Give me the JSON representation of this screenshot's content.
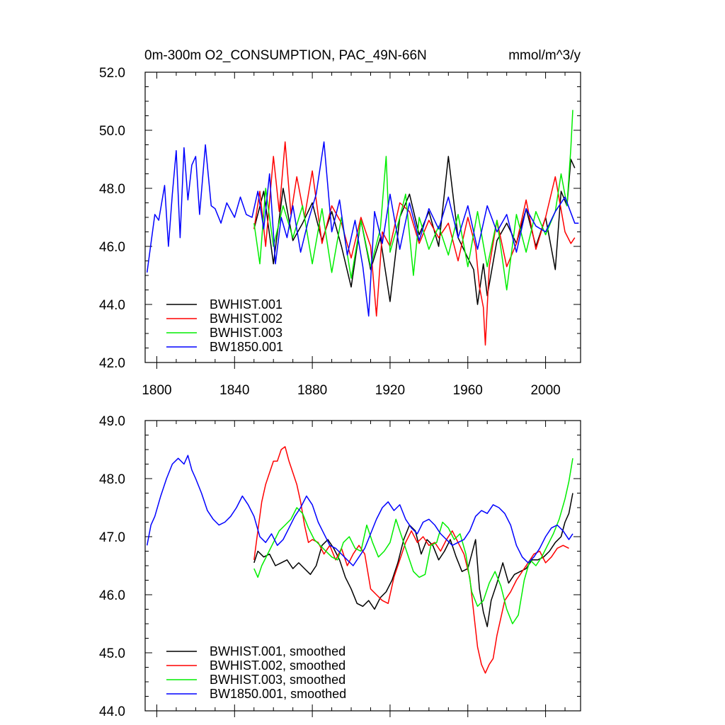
{
  "figure": {
    "title_left": "0m-300m O2_CONSUMPTION, PAC_49N-66N",
    "title_right": "mmol/m^3/y"
  },
  "chart_data": [
    {
      "type": "line",
      "title": "0m-300m O2_CONSUMPTION, PAC_49N-66N",
      "units": "mmol/m^3/y",
      "xlabel": "",
      "ylabel": "",
      "xlim": [
        1794,
        2018
      ],
      "ylim": [
        42.0,
        52.0
      ],
      "xticks": [
        1800,
        1840,
        1880,
        1920,
        1960,
        2000
      ],
      "yticks": [
        "42.0",
        "44.0",
        "46.0",
        "48.0",
        "50.0",
        "52.0"
      ],
      "legend_position": "bottom-left",
      "series": [
        {
          "name": "BWHIST.001",
          "color": "#000000",
          "x": [
            1850,
            1855,
            1860,
            1865,
            1870,
            1875,
            1880,
            1885,
            1890,
            1895,
            1900,
            1905,
            1910,
            1915,
            1920,
            1925,
            1930,
            1935,
            1940,
            1945,
            1950,
            1955,
            1960,
            1963,
            1965,
            1968,
            1970,
            1975,
            1980,
            1985,
            1990,
            1995,
            2000,
            2005,
            2008,
            2011,
            2013,
            2015
          ],
          "values": [
            46.6,
            47.9,
            45.4,
            48.0,
            46.2,
            46.8,
            47.5,
            46.2,
            47.2,
            46.0,
            44.6,
            46.9,
            45.2,
            46.3,
            44.1,
            47.0,
            47.8,
            46.4,
            47.2,
            46.0,
            49.1,
            46.3,
            45.6,
            45.2,
            44.0,
            45.4,
            44.3,
            46.2,
            46.8,
            46.1,
            47.3,
            46.0,
            47.0,
            45.2,
            47.9,
            47.4,
            49.0,
            48.7
          ]
        },
        {
          "name": "BWHIST.002",
          "color": "#ff0000",
          "x": [
            1850,
            1853,
            1856,
            1860,
            1863,
            1866,
            1869,
            1872,
            1876,
            1880,
            1885,
            1890,
            1895,
            1900,
            1905,
            1910,
            1913,
            1916,
            1920,
            1925,
            1930,
            1935,
            1940,
            1945,
            1950,
            1955,
            1960,
            1964,
            1966,
            1968,
            1969,
            1971,
            1975,
            1980,
            1985,
            1990,
            1995,
            2000,
            2005,
            2010,
            2013,
            2015
          ],
          "values": [
            46.6,
            47.9,
            46.0,
            49.1,
            47.2,
            49.6,
            47.1,
            48.4,
            47.0,
            48.6,
            46.1,
            47.4,
            46.8,
            45.6,
            47.0,
            46.0,
            43.6,
            46.5,
            46.0,
            47.5,
            47.2,
            46.1,
            46.9,
            46.3,
            46.8,
            45.5,
            47.0,
            46.0,
            44.6,
            43.9,
            42.6,
            45.3,
            46.9,
            45.3,
            46.1,
            47.6,
            45.9,
            47.0,
            48.4,
            46.5,
            46.1,
            46.3
          ]
        },
        {
          "name": "BWHIST.003",
          "color": "#00ee00",
          "x": [
            1850,
            1853,
            1856,
            1860,
            1865,
            1870,
            1875,
            1880,
            1885,
            1890,
            1895,
            1900,
            1905,
            1910,
            1915,
            1918,
            1920,
            1925,
            1928,
            1932,
            1935,
            1940,
            1945,
            1950,
            1955,
            1960,
            1965,
            1970,
            1975,
            1980,
            1985,
            1990,
            1995,
            2000,
            2005,
            2008,
            2011,
            2013,
            2014
          ],
          "values": [
            46.8,
            45.4,
            48.0,
            46.0,
            47.4,
            46.3,
            47.4,
            45.4,
            47.3,
            45.1,
            47.0,
            44.9,
            46.9,
            45.3,
            46.6,
            49.1,
            45.8,
            47.0,
            47.8,
            45.0,
            47.0,
            45.9,
            46.7,
            45.7,
            47.1,
            45.3,
            47.2,
            45.3,
            46.9,
            44.5,
            47.1,
            45.8,
            47.2,
            46.4,
            47.2,
            48.5,
            47.4,
            49.4,
            50.7
          ]
        },
        {
          "name": "BW1850.001",
          "color": "#0000ff",
          "x": [
            1795,
            1797,
            1799,
            1801,
            1804,
            1806,
            1808,
            1810,
            1812,
            1814,
            1816,
            1818,
            1820,
            1822,
            1825,
            1828,
            1830,
            1833,
            1836,
            1840,
            1843,
            1846,
            1849,
            1852,
            1855,
            1858,
            1861,
            1864,
            1867,
            1870,
            1874,
            1878,
            1882,
            1886,
            1890,
            1894,
            1898,
            1902,
            1906,
            1909,
            1912,
            1916,
            1920,
            1925,
            1930,
            1935,
            1940,
            1945,
            1950,
            1955,
            1960,
            1965,
            1970,
            1975,
            1980,
            1985,
            1990,
            1995,
            2000,
            2005,
            2010,
            2015,
            2017
          ],
          "values": [
            45.1,
            46.1,
            47.1,
            46.9,
            48.1,
            46.0,
            47.8,
            49.3,
            46.3,
            49.4,
            47.6,
            48.8,
            49.1,
            47.1,
            49.5,
            47.4,
            47.3,
            46.8,
            47.5,
            47.0,
            47.7,
            47.1,
            47.0,
            47.9,
            46.6,
            48.5,
            45.4,
            47.0,
            46.3,
            47.4,
            45.8,
            46.9,
            47.8,
            49.6,
            46.5,
            47.6,
            45.7,
            46.9,
            45.3,
            43.6,
            47.2,
            46.1,
            47.8,
            45.9,
            47.5,
            46.2,
            47.3,
            46.6,
            47.7,
            46.3,
            47.4,
            45.9,
            47.4,
            46.5,
            47.1,
            45.8,
            47.3,
            46.7,
            46.5,
            47.2,
            47.7,
            46.8,
            46.8
          ]
        }
      ]
    },
    {
      "type": "line",
      "title": "",
      "xlabel": "",
      "ylabel": "",
      "xlim": [
        1794,
        2018
      ],
      "ylim": [
        44.0,
        49.0
      ],
      "xticks": [
        1800,
        1840,
        1880,
        1920,
        1960,
        2000
      ],
      "yticks": [
        "44.0",
        "45.0",
        "46.0",
        "47.0",
        "48.0",
        "49.0"
      ],
      "legend_position": "bottom-left",
      "series": [
        {
          "name": "BWHIST.001, smoothed",
          "color": "#000000",
          "x": [
            1850,
            1852,
            1855,
            1858,
            1861,
            1864,
            1867,
            1870,
            1873,
            1876,
            1879,
            1882,
            1885,
            1888,
            1891,
            1894,
            1897,
            1900,
            1903,
            1906,
            1909,
            1912,
            1915,
            1918,
            1921,
            1924,
            1927,
            1930,
            1933,
            1936,
            1939,
            1942,
            1945,
            1948,
            1951,
            1954,
            1957,
            1960,
            1962,
            1964,
            1966,
            1968,
            1970,
            1972,
            1975,
            1978,
            1981,
            1984,
            1987,
            1990,
            1993,
            1996,
            1999,
            2002,
            2005,
            2008,
            2010,
            2012,
            2014
          ],
          "values": [
            46.55,
            46.75,
            46.65,
            46.7,
            46.5,
            46.55,
            46.6,
            46.45,
            46.55,
            46.45,
            46.35,
            46.5,
            46.85,
            46.95,
            46.8,
            46.6,
            46.3,
            46.1,
            45.85,
            45.8,
            45.9,
            45.75,
            45.95,
            46.05,
            46.25,
            46.55,
            46.95,
            47.2,
            47.1,
            46.7,
            46.95,
            46.85,
            46.6,
            46.75,
            46.95,
            46.65,
            46.4,
            46.45,
            46.7,
            46.95,
            46.1,
            45.7,
            45.45,
            45.9,
            46.2,
            46.55,
            46.2,
            46.35,
            46.4,
            46.45,
            46.6,
            46.6,
            46.65,
            46.75,
            46.9,
            47.0,
            47.25,
            47.4,
            47.75
          ]
        },
        {
          "name": "BWHIST.002, smoothed",
          "color": "#ff0000",
          "x": [
            1850,
            1852,
            1854,
            1856,
            1858,
            1860,
            1862,
            1864,
            1866,
            1868,
            1870,
            1872,
            1874,
            1876,
            1878,
            1880,
            1883,
            1886,
            1889,
            1892,
            1895,
            1898,
            1901,
            1904,
            1907,
            1910,
            1913,
            1916,
            1919,
            1922,
            1925,
            1928,
            1931,
            1934,
            1937,
            1940,
            1943,
            1946,
            1949,
            1952,
            1955,
            1958,
            1961,
            1963,
            1965,
            1967,
            1969,
            1971,
            1973,
            1975,
            1977,
            1979,
            1982,
            1985,
            1988,
            1991,
            1994,
            1997,
            2000,
            2003,
            2006,
            2009,
            2012
          ],
          "values": [
            46.6,
            47.1,
            47.6,
            47.9,
            48.1,
            48.3,
            48.3,
            48.5,
            48.55,
            48.3,
            48.1,
            47.9,
            47.6,
            47.2,
            46.9,
            46.95,
            46.9,
            46.7,
            46.85,
            46.6,
            46.8,
            46.5,
            46.7,
            46.85,
            46.7,
            46.1,
            46.0,
            45.9,
            45.85,
            46.3,
            46.6,
            46.9,
            47.1,
            46.9,
            47.0,
            46.85,
            46.9,
            46.75,
            46.95,
            47.1,
            46.9,
            46.7,
            46.3,
            45.7,
            45.1,
            44.8,
            44.65,
            44.8,
            44.9,
            45.3,
            45.6,
            45.9,
            46.05,
            46.25,
            46.4,
            46.55,
            46.7,
            46.75,
            46.55,
            46.65,
            46.8,
            46.85,
            46.8
          ]
        },
        {
          "name": "BWHIST.003, smoothed",
          "color": "#00ee00",
          "x": [
            1850,
            1852,
            1854,
            1857,
            1860,
            1863,
            1866,
            1869,
            1872,
            1875,
            1878,
            1881,
            1884,
            1887,
            1890,
            1893,
            1896,
            1899,
            1902,
            1905,
            1908,
            1911,
            1914,
            1917,
            1920,
            1923,
            1926,
            1929,
            1932,
            1935,
            1938,
            1941,
            1944,
            1947,
            1950,
            1953,
            1956,
            1959,
            1962,
            1965,
            1968,
            1971,
            1974,
            1977,
            1980,
            1983,
            1986,
            1989,
            1992,
            1995,
            1998,
            2001,
            2004,
            2007,
            2010,
            2012,
            2014
          ],
          "values": [
            46.45,
            46.3,
            46.5,
            46.7,
            46.9,
            47.1,
            47.2,
            47.3,
            47.5,
            47.4,
            47.15,
            46.95,
            46.85,
            46.75,
            46.65,
            46.6,
            46.9,
            47.0,
            46.8,
            46.75,
            47.2,
            46.9,
            46.65,
            46.75,
            46.9,
            47.3,
            47.0,
            46.7,
            46.4,
            46.3,
            46.35,
            46.85,
            46.9,
            47.25,
            47.15,
            46.95,
            47.05,
            46.7,
            46.05,
            45.8,
            45.9,
            46.2,
            46.4,
            46.15,
            45.75,
            45.5,
            45.65,
            46.25,
            46.6,
            46.5,
            46.65,
            46.85,
            47.05,
            47.3,
            47.65,
            47.95,
            48.35
          ]
        },
        {
          "name": "BW1850.001, smoothed",
          "color": "#0000ff",
          "x": [
            1795,
            1797,
            1799,
            1802,
            1805,
            1808,
            1811,
            1814,
            1816,
            1818,
            1820,
            1823,
            1826,
            1829,
            1832,
            1835,
            1838,
            1841,
            1844,
            1847,
            1850,
            1853,
            1856,
            1859,
            1862,
            1865,
            1868,
            1871,
            1874,
            1877,
            1880,
            1883,
            1886,
            1889,
            1892,
            1895,
            1898,
            1901,
            1904,
            1907,
            1910,
            1913,
            1916,
            1919,
            1922,
            1925,
            1928,
            1931,
            1934,
            1937,
            1940,
            1943,
            1946,
            1949,
            1952,
            1955,
            1958,
            1961,
            1964,
            1967,
            1970,
            1973,
            1976,
            1979,
            1982,
            1985,
            1988,
            1991,
            1994,
            1997,
            2000,
            2003,
            2006,
            2009,
            2012,
            2014
          ],
          "values": [
            46.85,
            47.2,
            47.35,
            47.7,
            48.0,
            48.25,
            48.35,
            48.25,
            48.4,
            48.15,
            48.0,
            47.75,
            47.45,
            47.3,
            47.2,
            47.25,
            47.35,
            47.5,
            47.7,
            47.55,
            47.35,
            47.0,
            46.9,
            47.05,
            46.85,
            46.95,
            47.15,
            47.35,
            47.5,
            47.7,
            47.55,
            47.25,
            47.05,
            46.85,
            46.8,
            46.7,
            46.6,
            46.5,
            46.65,
            46.8,
            47.05,
            47.3,
            47.5,
            47.6,
            47.45,
            47.55,
            47.3,
            47.15,
            47.05,
            47.25,
            47.3,
            47.2,
            47.05,
            46.95,
            46.85,
            46.9,
            46.95,
            47.1,
            47.35,
            47.45,
            47.4,
            47.55,
            47.5,
            47.4,
            47.2,
            46.85,
            46.65,
            46.55,
            46.65,
            46.8,
            47.0,
            47.15,
            47.2,
            47.1,
            46.95,
            47.05
          ]
        }
      ]
    }
  ]
}
